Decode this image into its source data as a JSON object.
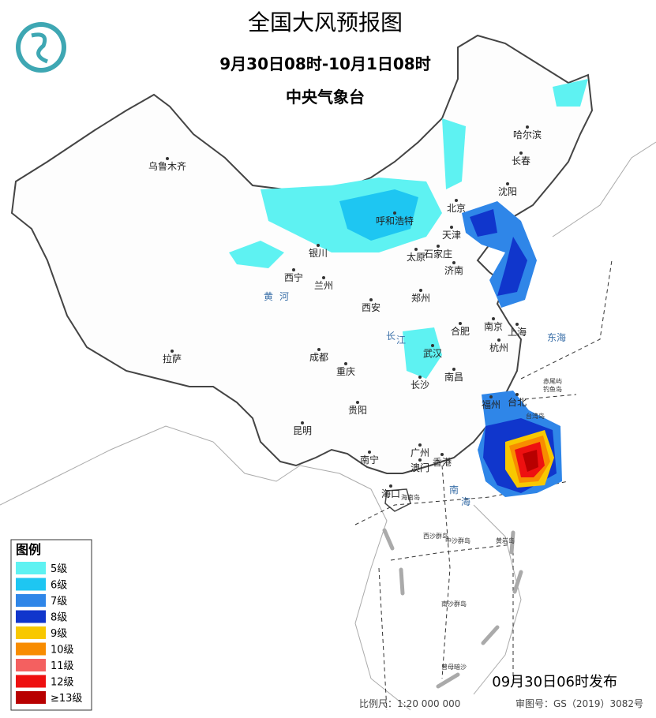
{
  "header": {
    "title": "全国大风预报图",
    "period": "9月30日08时-10月1日08时",
    "issuer": "中央气象台"
  },
  "legend": {
    "title": "图例",
    "items": [
      {
        "label": "5级",
        "color": "#5ef2f2"
      },
      {
        "label": "6级",
        "color": "#1ec6f2"
      },
      {
        "label": "7级",
        "color": "#2f86e8"
      },
      {
        "label": "8级",
        "color": "#1036cc"
      },
      {
        "label": "9级",
        "color": "#f8c800"
      },
      {
        "label": "10级",
        "color": "#f88c00"
      },
      {
        "label": "11级",
        "color": "#f46060"
      },
      {
        "label": "12级",
        "color": "#ee1010"
      },
      {
        "label": "≥13级",
        "color": "#b80000"
      }
    ]
  },
  "cities": [
    "乌鲁木齐",
    "哈尔滨",
    "长春",
    "沈阳",
    "北京",
    "天津",
    "呼和浩特",
    "银川",
    "太原",
    "石家庄",
    "济南",
    "西宁",
    "兰州",
    "郑州",
    "西安",
    "南京",
    "合肥",
    "上海",
    "杭州",
    "成都",
    "武汉",
    "拉萨",
    "重庆",
    "长沙",
    "南昌",
    "福州",
    "台北",
    "贵阳",
    "昆明",
    "南宁",
    "广州",
    "香港",
    "澳门",
    "海口"
  ],
  "places": [
    "东海",
    "南",
    "海",
    "赤尾屿",
    "钓鱼岛",
    "台湾岛",
    "海南岛",
    "西沙群岛",
    "中沙群岛",
    "黄岩岛",
    "南沙群岛",
    "曾母暗沙",
    "长",
    "江",
    "黄",
    "河"
  ],
  "footer": {
    "issued": "09月30日06时发布",
    "scale": "比例尺：1:20 000 000",
    "approval": "审图号：GS（2019）3082号"
  }
}
